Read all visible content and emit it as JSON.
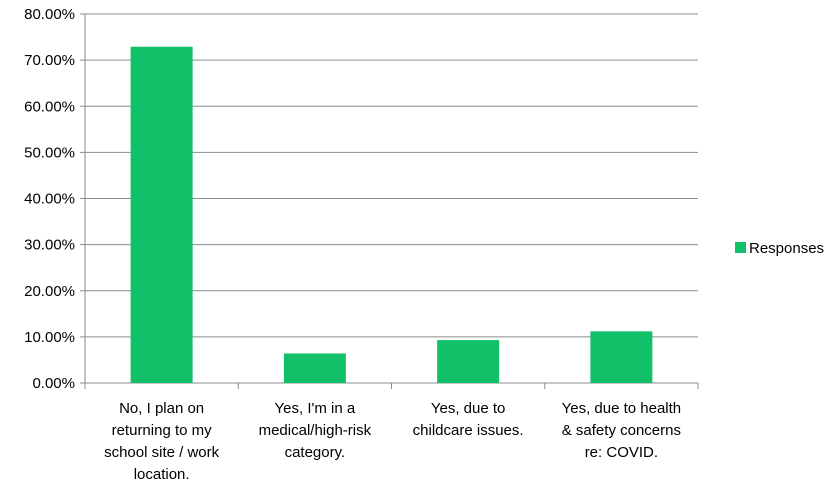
{
  "chart_data": {
    "type": "bar",
    "categories": [
      [
        "No, I plan on",
        "returning to my",
        "school site / work",
        "location."
      ],
      [
        "Yes, I'm in a",
        "medical/high-risk",
        "category."
      ],
      [
        "Yes, due to",
        "childcare issues."
      ],
      [
        "Yes, due to health",
        "& safety concerns",
        "re: COVID."
      ]
    ],
    "series": [
      {
        "name": "Responses",
        "values": [
          72.9,
          6.4,
          9.3,
          11.2
        ]
      }
    ],
    "ylim": [
      0,
      80
    ],
    "yticks": [
      0,
      10,
      20,
      30,
      40,
      50,
      60,
      70,
      80
    ],
    "ytick_labels": [
      "0.00%",
      "10.00%",
      "20.00%",
      "30.00%",
      "40.00%",
      "50.00%",
      "60.00%",
      "70.00%",
      "80.00%"
    ],
    "grid": true,
    "legend_position": "right",
    "bar_color": "#12c06a"
  }
}
